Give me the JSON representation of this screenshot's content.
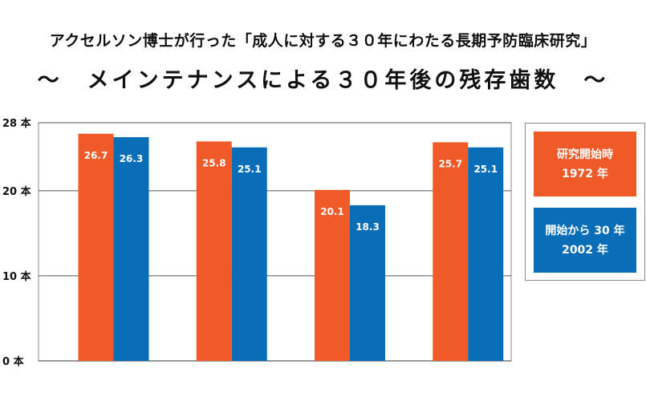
{
  "header": {
    "title": "アクセルソン博士が行った「成人に対する３０年にわたる長期予防臨床研究」",
    "subtitle": "～　メインテナンスによる３０年後の残存歯数　～"
  },
  "colors": {
    "series0": "#f05a28",
    "series1": "#0a6db7",
    "grid": "#555555",
    "frame": "#8a8a8a"
  },
  "legend": [
    {
      "line1": "研究開始時",
      "line2": "1972 年"
    },
    {
      "line1": "開始から 30 年",
      "line2": "2002 年"
    }
  ],
  "chart_data": {
    "type": "bar",
    "title": "～　メインテナンスによる３０年後の残存歯数　～",
    "categories": [
      "",
      "",
      "",
      ""
    ],
    "series": [
      {
        "name": "研究開始時 1972 年",
        "values": [
          26.7,
          25.8,
          20.1,
          25.7
        ]
      },
      {
        "name": "開始から 30 年 2002 年",
        "values": [
          26.3,
          25.1,
          18.3,
          25.1
        ]
      }
    ],
    "ylim": [
      0,
      28
    ],
    "yticks": [
      0,
      10,
      20,
      28
    ],
    "ytick_labels": [
      "0 本",
      "10 本",
      "20 本",
      "28 本"
    ],
    "grid": true,
    "legend_position": "right"
  }
}
